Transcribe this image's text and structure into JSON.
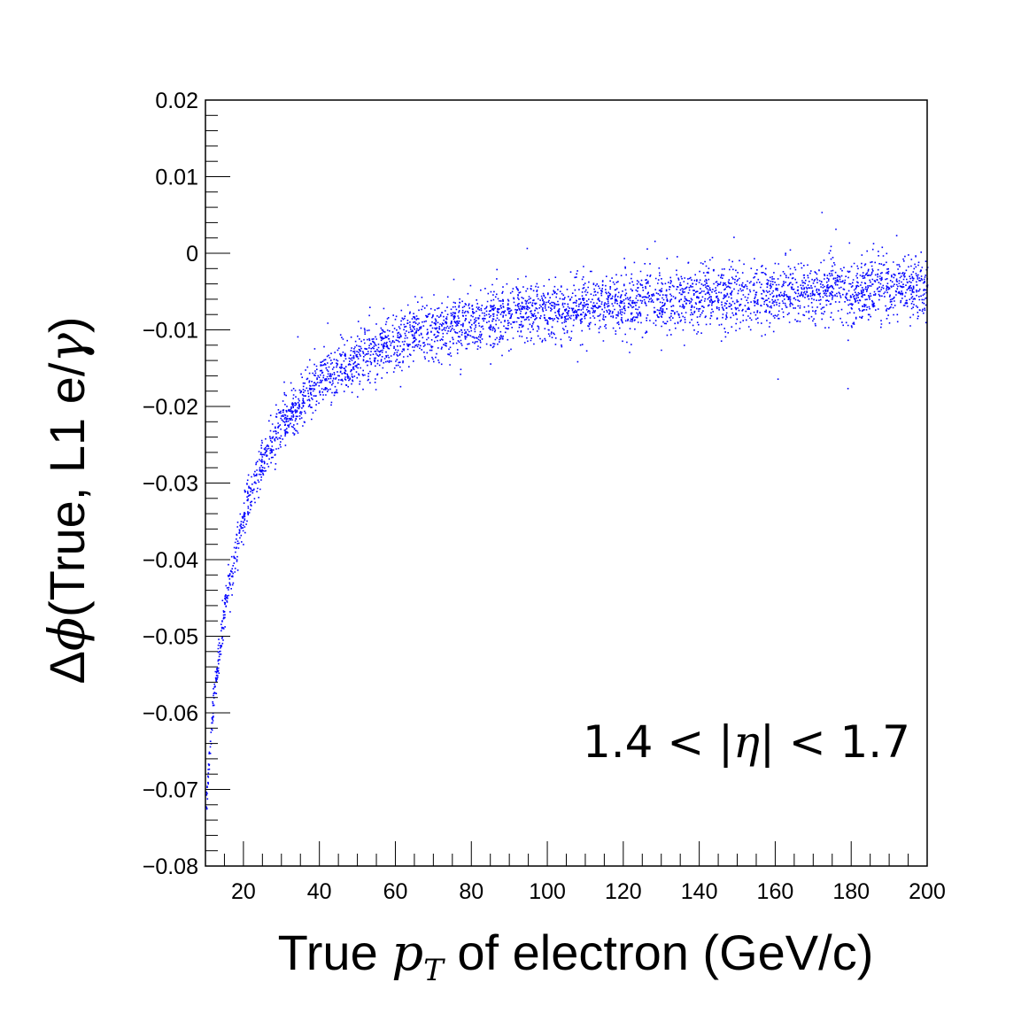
{
  "chart_data": {
    "type": "scatter",
    "title": "",
    "xlabel": {
      "pre": "True ",
      "var": "p",
      "sub": "T",
      "post": " of electron (GeV/c)"
    },
    "ylabel": {
      "pre": "Δ",
      "var": "ϕ",
      "post1": "(True, L1 e/",
      "var2": "γ",
      "post2": ")"
    },
    "annotation": {
      "pre": "1.4 < |",
      "var": "η",
      "post": "| < 1.7"
    },
    "xlim": [
      10,
      200
    ],
    "ylim": [
      -0.08,
      0.02
    ],
    "x_ticks": [
      20,
      40,
      60,
      80,
      100,
      120,
      140,
      160,
      180,
      200
    ],
    "y_ticks": [
      0.02,
      0.01,
      0,
      -0.01,
      -0.02,
      -0.03,
      -0.04,
      -0.05,
      -0.06,
      -0.07,
      -0.08
    ],
    "y_tick_labels": [
      "0.02",
      "0.01",
      "0",
      "−0.01",
      "−0.02",
      "−0.03",
      "−0.04",
      "−0.05",
      "−0.06",
      "−0.07",
      "−0.08"
    ],
    "marker_color": "#0000ff",
    "band_profile": {
      "pt": [
        10,
        12,
        15,
        20,
        25,
        30,
        40,
        50,
        60,
        70,
        80,
        100,
        120,
        140,
        160,
        180,
        200
      ],
      "mean": [
        -0.072,
        -0.058,
        -0.046,
        -0.034,
        -0.027,
        -0.022,
        -0.0165,
        -0.0135,
        -0.0115,
        -0.0098,
        -0.0088,
        -0.0074,
        -0.0064,
        -0.0057,
        -0.0052,
        -0.0048,
        -0.0045
      ],
      "half_width": [
        0.0015,
        0.0018,
        0.002,
        0.0025,
        0.0028,
        0.003,
        0.0032,
        0.0033,
        0.0034,
        0.0034,
        0.0034,
        0.0035,
        0.0035,
        0.0036,
        0.0037,
        0.0038,
        0.0039
      ]
    }
  }
}
